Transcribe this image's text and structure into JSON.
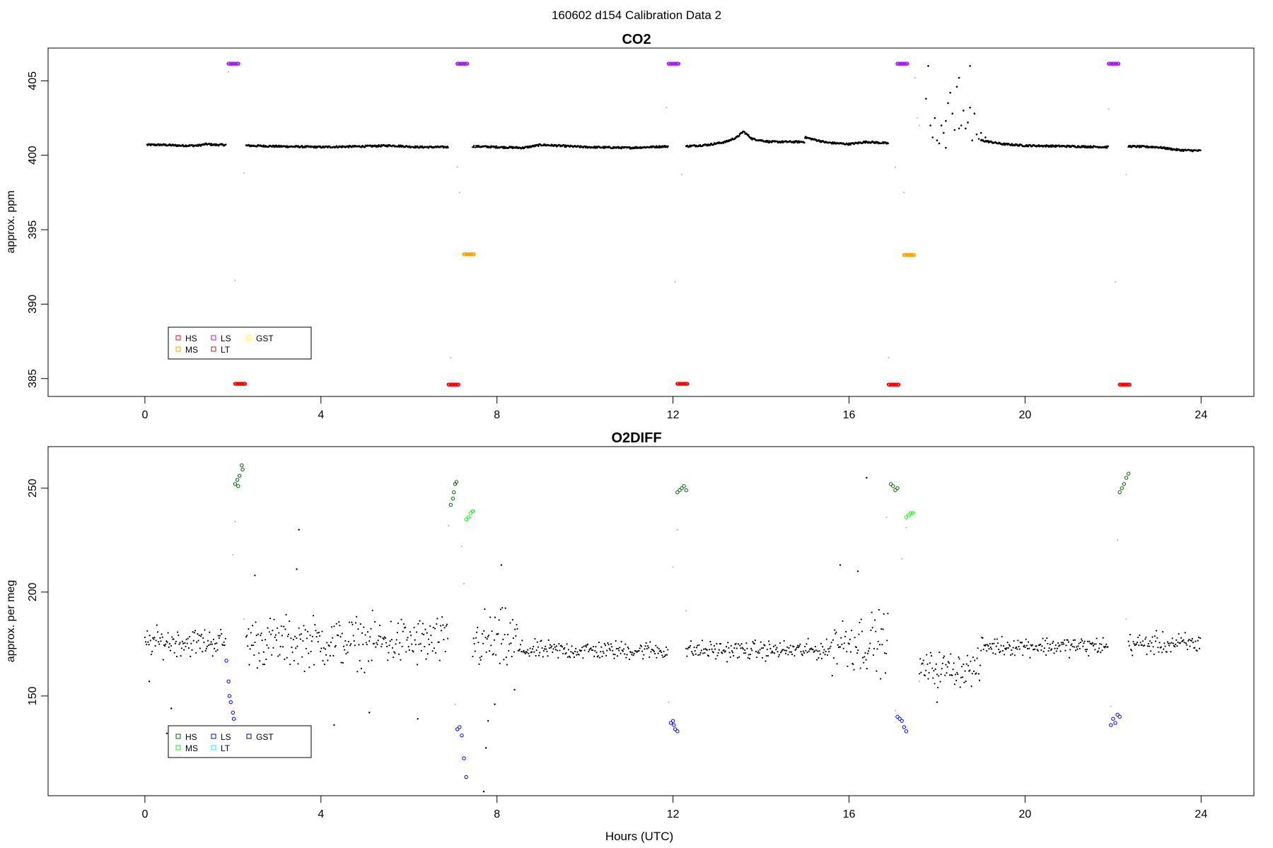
{
  "page": {
    "title": "160602   d154   Calibration Data 2"
  },
  "chart_data": [
    {
      "type": "scatter",
      "title": "CO2",
      "xlabel": "",
      "ylabel": "approx. ppm",
      "xlim": [
        -2.2,
        25.2
      ],
      "ylim": [
        383.8,
        407.2
      ],
      "xticks": [
        0,
        4,
        8,
        12,
        16,
        20,
        24
      ],
      "yticks": [
        385,
        390,
        395,
        400,
        405
      ],
      "grid": false,
      "legend": {
        "position": "bottom-left",
        "entries": [
          {
            "label": "HS",
            "color": "#ff0000"
          },
          {
            "label": "MS",
            "color": "#ffa500"
          },
          {
            "label": "LS",
            "color": "#a020f0"
          },
          {
            "label": "LT",
            "color": "#b22222"
          },
          {
            "label": "GST",
            "color": "#ffff00"
          }
        ]
      },
      "baseline": {
        "color": "#000000",
        "segments": [
          {
            "x": [
              0.05,
              0.4,
              0.8,
              1.2,
              1.4,
              1.6,
              1.85
            ],
            "y": [
              400.7,
              400.7,
              400.65,
              400.65,
              400.75,
              400.7,
              400.7
            ]
          },
          {
            "x": [
              2.3,
              3.0,
              4.0,
              5.0,
              5.6,
              6.2,
              6.9
            ],
            "y": [
              400.65,
              400.6,
              400.55,
              400.6,
              400.65,
              400.55,
              400.55
            ]
          },
          {
            "x": [
              7.45,
              8.0,
              8.6,
              9.0,
              10.0,
              11.0,
              11.9
            ],
            "y": [
              400.6,
              400.55,
              400.5,
              400.7,
              400.55,
              400.5,
              400.6
            ]
          },
          {
            "x": [
              12.3,
              12.8,
              13.2,
              13.45,
              13.6,
              13.8,
              14.2,
              15.0
            ],
            "y": [
              400.6,
              400.7,
              400.9,
              401.2,
              401.6,
              401.1,
              400.9,
              400.9
            ]
          },
          {
            "x": [
              15.0,
              15.5,
              16.0,
              16.4,
              16.9
            ],
            "y": [
              401.2,
              400.85,
              400.75,
              400.9,
              400.8
            ]
          },
          {
            "x": [
              19.0,
              19.5,
              20.0,
              21.0,
              21.9
            ],
            "y": [
              401.0,
              400.75,
              400.65,
              400.6,
              400.55
            ]
          },
          {
            "x": [
              22.35,
              23.0,
              23.5,
              24.0
            ],
            "y": [
              400.6,
              400.55,
              400.35,
              400.3
            ]
          }
        ]
      },
      "noise_points": {
        "color": "#000000",
        "x": [
          17.75,
          17.85,
          17.9,
          17.95,
          18.0,
          18.05,
          18.1,
          18.15,
          18.2,
          18.25,
          18.3,
          18.35,
          18.4,
          18.45,
          18.5,
          18.55,
          18.6,
          18.65,
          18.7,
          18.75,
          18.8,
          18.85,
          18.9,
          18.95,
          19.0,
          19.1,
          17.8,
          18.2,
          18.5,
          18.75
        ],
        "y": [
          403.8,
          402.0,
          401.2,
          402.5,
          401.0,
          400.8,
          402.0,
          401.5,
          402.3,
          403.5,
          404.2,
          402.8,
          401.7,
          404.6,
          405.2,
          402.0,
          403.0,
          401.8,
          402.2,
          403.2,
          401.0,
          402.8,
          401.4,
          401.1,
          401.5,
          401.2,
          406.0,
          400.5,
          401.8,
          406.0
        ]
      },
      "transition_points": {
        "color": "#bbbbbb",
        "x": [
          1.9,
          2.05,
          2.25,
          6.95,
          7.1,
          7.15,
          7.5,
          11.85,
          12.05,
          12.2,
          16.9,
          17.05,
          17.25,
          17.5,
          17.55,
          17.6,
          21.9,
          22.05,
          22.3
        ],
        "y": [
          405.6,
          391.6,
          398.8,
          386.4,
          399.2,
          397.5,
          400.6,
          403.2,
          391.5,
          398.7,
          386.4,
          399.2,
          397.5,
          405.2,
          402.5,
          402.0,
          403.1,
          391.5,
          398.7
        ]
      },
      "calibrations": [
        {
          "name": "LS",
          "color": "#a020f0",
          "x": [
            1.9,
            1.95,
            2.0,
            2.05,
            2.1
          ],
          "y": [
            406.15,
            406.15,
            406.15,
            406.15,
            406.15
          ]
        },
        {
          "name": "HS",
          "color": "#ff0000",
          "x": [
            2.05,
            2.1,
            2.15,
            2.2,
            2.25
          ],
          "y": [
            384.65,
            384.65,
            384.65,
            384.65,
            384.65
          ]
        },
        {
          "name": "HS",
          "color": "#ff0000",
          "x": [
            6.9,
            6.95,
            7.0,
            7.05,
            7.1
          ],
          "y": [
            384.6,
            384.6,
            384.6,
            384.6,
            384.6
          ]
        },
        {
          "name": "LS",
          "color": "#a020f0",
          "x": [
            7.1,
            7.15,
            7.2,
            7.25,
            7.3
          ],
          "y": [
            406.15,
            406.15,
            406.15,
            406.15,
            406.15
          ]
        },
        {
          "name": "MS",
          "color": "#ffa500",
          "x": [
            7.25,
            7.3,
            7.35,
            7.4,
            7.45
          ],
          "y": [
            393.35,
            393.35,
            393.35,
            393.35,
            393.35
          ]
        },
        {
          "name": "LS",
          "color": "#a020f0",
          "x": [
            11.9,
            11.95,
            12.0,
            12.05,
            12.1
          ],
          "y": [
            406.15,
            406.15,
            406.15,
            406.15,
            406.15
          ]
        },
        {
          "name": "HS",
          "color": "#ff0000",
          "x": [
            12.1,
            12.15,
            12.2,
            12.25,
            12.3
          ],
          "y": [
            384.65,
            384.65,
            384.65,
            384.65,
            384.65
          ]
        },
        {
          "name": "HS",
          "color": "#ff0000",
          "x": [
            16.9,
            16.95,
            17.0,
            17.05,
            17.1
          ],
          "y": [
            384.6,
            384.6,
            384.6,
            384.6,
            384.6
          ]
        },
        {
          "name": "LS",
          "color": "#a020f0",
          "x": [
            17.1,
            17.15,
            17.2,
            17.25,
            17.3
          ],
          "y": [
            406.15,
            406.15,
            406.15,
            406.15,
            406.15
          ]
        },
        {
          "name": "MS",
          "color": "#ffa500",
          "x": [
            17.25,
            17.3,
            17.35,
            17.4,
            17.45
          ],
          "y": [
            393.3,
            393.3,
            393.3,
            393.3,
            393.3
          ]
        },
        {
          "name": "LS",
          "color": "#a020f0",
          "x": [
            21.9,
            21.95,
            22.0,
            22.05,
            22.1
          ],
          "y": [
            406.15,
            406.15,
            406.15,
            406.15,
            406.15
          ]
        },
        {
          "name": "HS",
          "color": "#ff0000",
          "x": [
            22.15,
            22.2,
            22.25,
            22.3,
            22.35
          ],
          "y": [
            384.6,
            384.6,
            384.6,
            384.6,
            384.6
          ]
        }
      ]
    },
    {
      "type": "scatter",
      "title": "O2DIFF",
      "xlabel": "Hours (UTC)",
      "ylabel": "approx. per meg",
      "xlim": [
        -2.2,
        25.2
      ],
      "ylim": [
        102,
        270
      ],
      "xticks": [
        0,
        4,
        8,
        12,
        16,
        20,
        24
      ],
      "yticks": [
        150,
        200,
        250
      ],
      "grid": false,
      "legend": {
        "position": "bottom-left",
        "entries": [
          {
            "label": "HS",
            "color": "#006400"
          },
          {
            "label": "MS",
            "color": "#00ff00"
          },
          {
            "label": "LS",
            "color": "#0000ff"
          },
          {
            "label": "LT",
            "color": "#00ffff"
          },
          {
            "label": "GST",
            "color": "#00008b"
          }
        ]
      },
      "segments": [
        {
          "x_start": 0.0,
          "x_end": 1.85,
          "mean": 176,
          "spread": 18,
          "color": "#000000"
        },
        {
          "x_start": 2.3,
          "x_end": 6.9,
          "mean": 176,
          "spread": 32,
          "color": "#000000"
        },
        {
          "x_start": 7.45,
          "x_end": 8.5,
          "mean": 176,
          "spread": 40,
          "color": "#000000"
        },
        {
          "x_start": 8.5,
          "x_end": 11.9,
          "mean": 172,
          "spread": 12,
          "color": "#000000"
        },
        {
          "x_start": 12.3,
          "x_end": 15.6,
          "mean": 172,
          "spread": 12,
          "color": "#000000"
        },
        {
          "x_start": 15.6,
          "x_end": 16.9,
          "mean": 176,
          "spread": 38,
          "color": "#000000"
        },
        {
          "x_start": 17.6,
          "x_end": 19.0,
          "mean": 163,
          "spread": 22,
          "color": "#000000"
        },
        {
          "x_start": 19.0,
          "x_end": 21.9,
          "mean": 174,
          "spread": 12,
          "color": "#000000"
        },
        {
          "x_start": 22.35,
          "x_end": 24.0,
          "mean": 175,
          "spread": 14,
          "color": "#000000"
        }
      ],
      "outliers": {
        "color": "#000000",
        "x": [
          0.1,
          0.5,
          0.6,
          2.5,
          3.5,
          3.45,
          4.3,
          5.1,
          6.2,
          7.75,
          7.8,
          7.7,
          8.4,
          8.1,
          16.4,
          16.2,
          15.8,
          18.0,
          7.95
        ],
        "y": [
          157,
          132,
          144,
          208,
          230,
          211,
          136,
          142,
          139,
          125,
          138,
          104,
          153,
          213,
          255,
          210,
          213,
          147,
          146
        ]
      },
      "transition_points": {
        "color": "#bbbbbb",
        "x": [
          2.0,
          2.05,
          2.25,
          6.9,
          7.05,
          7.2,
          7.25,
          7.5,
          11.9,
          12.0,
          12.1,
          12.3,
          16.85,
          17.05,
          17.2,
          17.3,
          17.6,
          17.7,
          21.95,
          22.1,
          22.3
        ],
        "y": [
          218,
          234,
          187,
          232,
          146,
          222,
          204,
          178,
          147,
          212,
          230,
          191,
          236,
          143,
          216,
          231,
          157,
          165,
          145,
          225,
          187
        ]
      },
      "calibrations": [
        {
          "name": "HS",
          "color": "#006400",
          "x": [
            2.05,
            2.1,
            2.12,
            2.15,
            2.2,
            2.22
          ],
          "y": [
            252,
            254,
            251,
            256,
            261,
            259
          ]
        },
        {
          "name": "LS",
          "color": "#0000ff",
          "x": [
            1.85,
            1.9,
            1.92,
            1.95,
            2.0,
            2.02
          ],
          "y": [
            167,
            157,
            150,
            147,
            142,
            139
          ]
        },
        {
          "name": "HS",
          "color": "#006400",
          "x": [
            6.95,
            7.0,
            7.02,
            7.05,
            7.08
          ],
          "y": [
            242,
            245,
            248,
            252,
            253
          ]
        },
        {
          "name": "LS",
          "color": "#0000ff",
          "x": [
            7.1,
            7.15,
            7.2,
            7.25,
            7.3
          ],
          "y": [
            134,
            135,
            131,
            120,
            111
          ]
        },
        {
          "name": "MS",
          "color": "#00ff00",
          "x": [
            7.3,
            7.35,
            7.4,
            7.45
          ],
          "y": [
            235,
            236,
            238,
            239
          ]
        },
        {
          "name": "LS",
          "color": "#0000ff",
          "x": [
            11.95,
            12.0,
            12.02,
            12.05,
            12.1
          ],
          "y": [
            137,
            138,
            136,
            134,
            133
          ]
        },
        {
          "name": "HS",
          "color": "#006400",
          "x": [
            12.1,
            12.15,
            12.2,
            12.25,
            12.3
          ],
          "y": [
            248,
            249,
            250,
            251,
            249
          ]
        },
        {
          "name": "HS",
          "color": "#006400",
          "x": [
            16.95,
            17.0,
            17.05,
            17.1
          ],
          "y": [
            252,
            251,
            249,
            250
          ]
        },
        {
          "name": "LS",
          "color": "#0000ff",
          "x": [
            17.1,
            17.15,
            17.2,
            17.25,
            17.3
          ],
          "y": [
            140,
            139,
            138,
            135,
            133
          ]
        },
        {
          "name": "MS",
          "color": "#00ff00",
          "x": [
            17.3,
            17.35,
            17.4,
            17.45
          ],
          "y": [
            236,
            237,
            238,
            238
          ]
        },
        {
          "name": "LS",
          "color": "#0000ff",
          "x": [
            21.95,
            22.0,
            22.05,
            22.1,
            22.15
          ],
          "y": [
            136,
            139,
            137,
            141,
            140
          ]
        },
        {
          "name": "HS",
          "color": "#006400",
          "x": [
            22.15,
            22.2,
            22.25,
            22.3,
            22.35
          ],
          "y": [
            248,
            250,
            252,
            255,
            257
          ]
        }
      ]
    }
  ]
}
